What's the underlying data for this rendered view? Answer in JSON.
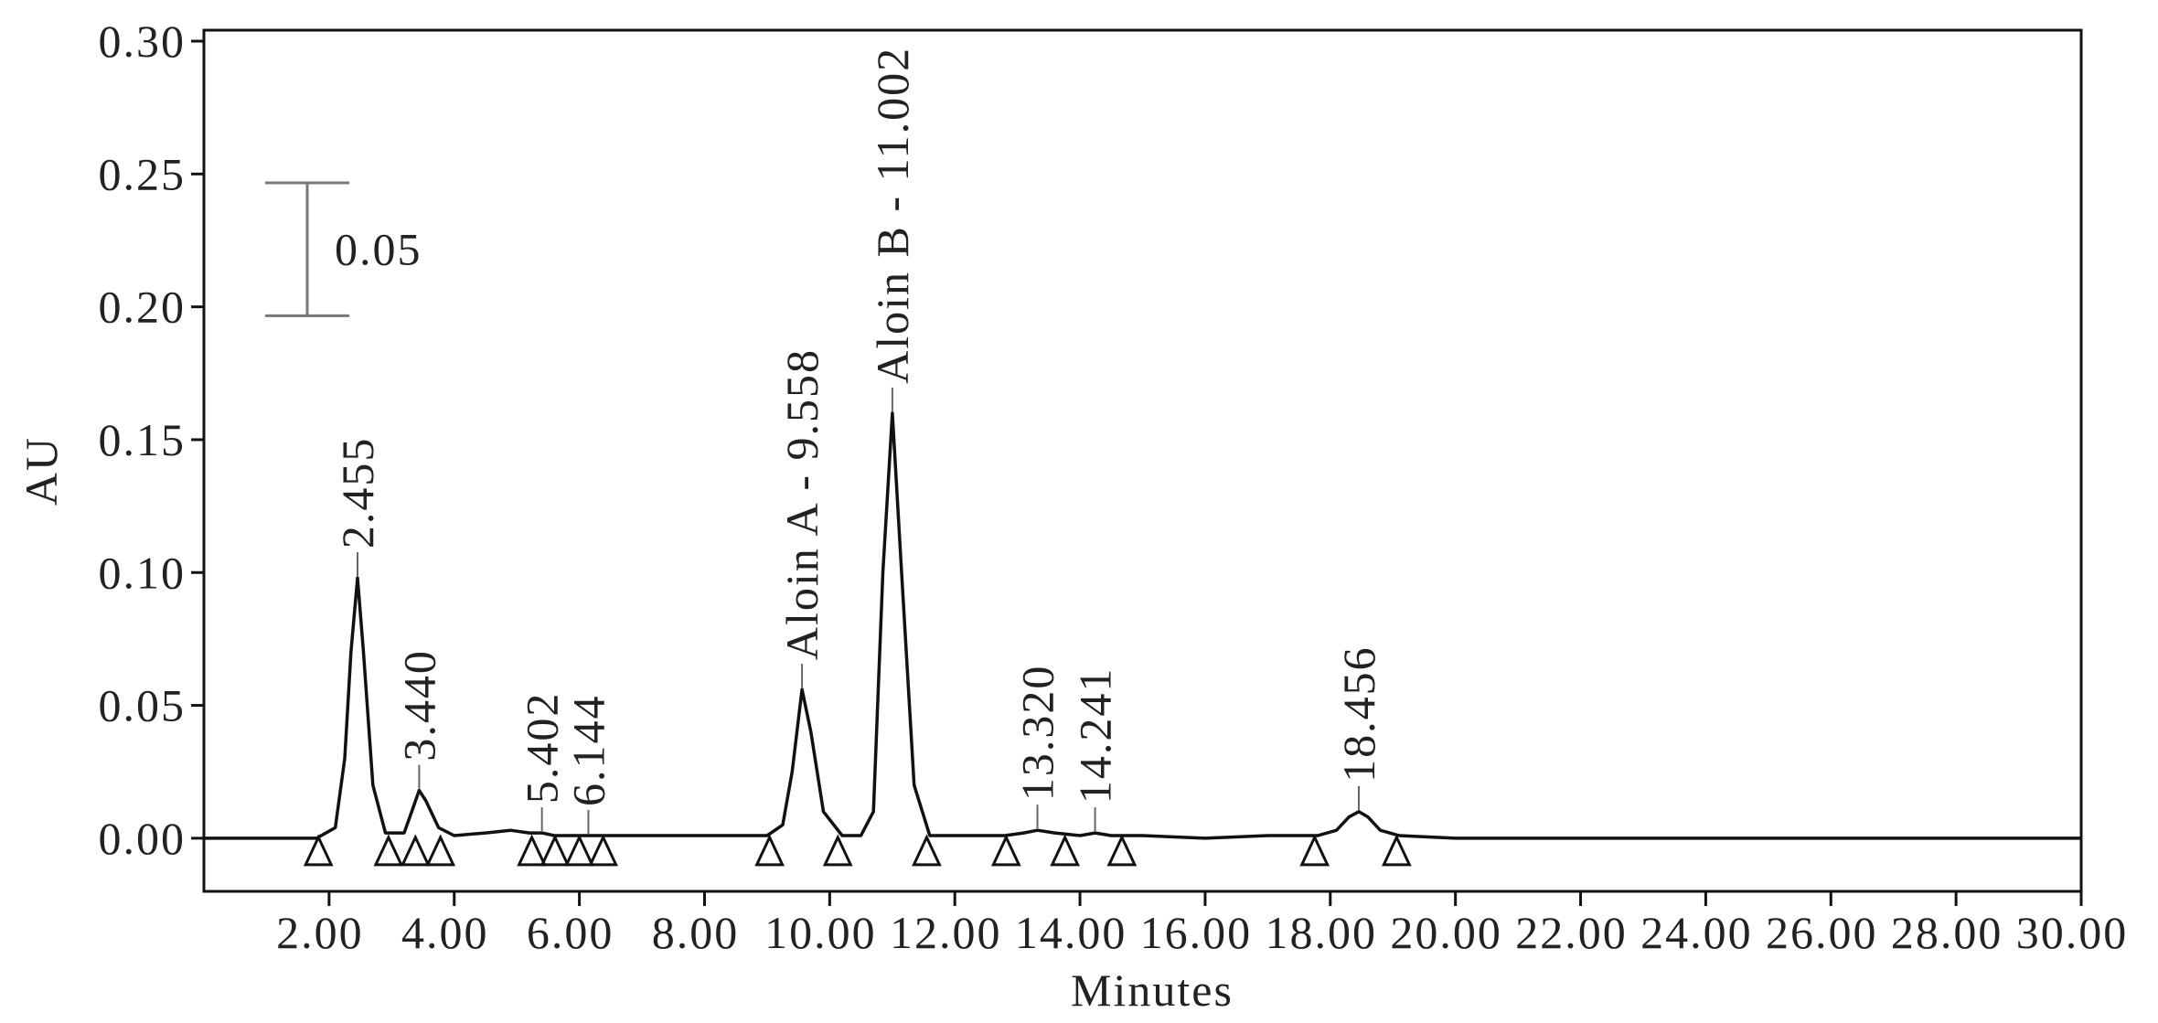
{
  "chart_data": {
    "type": "line",
    "xlabel": "Minutes",
    "ylabel": "AU",
    "xlim": [
      0,
      30
    ],
    "ylim": [
      -0.02,
      0.3
    ],
    "xticks": [
      {
        "value": 2,
        "label": "2.00"
      },
      {
        "value": 4,
        "label": "4.00"
      },
      {
        "value": 6,
        "label": "6.00"
      },
      {
        "value": 8,
        "label": "8.00"
      },
      {
        "value": 10,
        "label": "10.00"
      },
      {
        "value": 12,
        "label": "12.00"
      },
      {
        "value": 14,
        "label": "14.00"
      },
      {
        "value": 16,
        "label": "16.00"
      },
      {
        "value": 18,
        "label": "18.00"
      },
      {
        "value": 20,
        "label": "20.00"
      },
      {
        "value": 22,
        "label": "22.00"
      },
      {
        "value": 24,
        "label": "24.00"
      },
      {
        "value": 26,
        "label": "26.00"
      },
      {
        "value": 28,
        "label": "28.00"
      },
      {
        "value": 30,
        "label": "30.00"
      }
    ],
    "yticks": [
      {
        "value": 0,
        "label": "0.00"
      },
      {
        "value": 0.05,
        "label": "0.05"
      },
      {
        "value": 0.1,
        "label": "0.10"
      },
      {
        "value": 0.15,
        "label": "0.15"
      },
      {
        "value": 0.2,
        "label": "0.20"
      },
      {
        "value": 0.25,
        "label": "0.25"
      },
      {
        "value": 0.3,
        "label": "0.30"
      }
    ],
    "color": "#111111",
    "x": [
      0,
      1,
      1.8,
      2.1,
      2.25,
      2.35,
      2.455,
      2.55,
      2.7,
      2.9,
      3.2,
      3.35,
      3.44,
      3.55,
      3.75,
      4.0,
      4.5,
      4.9,
      5.2,
      5.402,
      5.6,
      6.0,
      6.144,
      6.4,
      7.0,
      8.0,
      9.0,
      9.25,
      9.4,
      9.558,
      9.7,
      9.9,
      10.2,
      10.5,
      10.7,
      10.85,
      11.002,
      11.15,
      11.35,
      11.6,
      12.0,
      12.8,
      13.1,
      13.32,
      13.6,
      14.0,
      14.241,
      14.5,
      15.0,
      16.0,
      17.0,
      17.8,
      18.1,
      18.3,
      18.456,
      18.6,
      18.8,
      19.1,
      20,
      22,
      24,
      26,
      28,
      30
    ],
    "values": [
      0,
      0,
      0,
      0.004,
      0.03,
      0.07,
      0.098,
      0.07,
      0.02,
      0.002,
      0.002,
      0.012,
      0.018,
      0.014,
      0.004,
      0.001,
      0.002,
      0.003,
      0.002,
      0.002,
      0.001,
      0.001,
      0.001,
      0.001,
      0.001,
      0.001,
      0.001,
      0.005,
      0.025,
      0.056,
      0.04,
      0.01,
      0.001,
      0.001,
      0.01,
      0.1,
      0.16,
      0.1,
      0.02,
      0.001,
      0.001,
      0.001,
      0.002,
      0.003,
      0.002,
      0.001,
      0.002,
      0.001,
      0.001,
      0,
      0.001,
      0.001,
      0.003,
      0.008,
      0.01,
      0.008,
      0.003,
      0.001,
      0,
      0,
      0,
      0,
      0,
      0
    ],
    "peaks": [
      {
        "label": "2.455",
        "x": 2.455
      },
      {
        "label": "3.440",
        "x": 3.44
      },
      {
        "label": "5.402",
        "x": 5.402
      },
      {
        "label": "6.144",
        "x": 6.144
      },
      {
        "label": "Aloin A - 9.558",
        "x": 9.558
      },
      {
        "label": "Aloin B - 11.002",
        "x": 11.002
      },
      {
        "label": "13.320",
        "x": 13.32
      },
      {
        "label": "14.241",
        "x": 14.241
      },
      {
        "label": "18.456",
        "x": 18.456
      }
    ],
    "markers": [
      1.83,
      2.95,
      3.38,
      3.78,
      5.24,
      5.61,
      6.0,
      6.38,
      9.04,
      10.13,
      11.55,
      12.82,
      13.76,
      14.67,
      17.75,
      19.06
    ],
    "scale_bar": {
      "value": 0.05,
      "label": "0.05"
    }
  }
}
